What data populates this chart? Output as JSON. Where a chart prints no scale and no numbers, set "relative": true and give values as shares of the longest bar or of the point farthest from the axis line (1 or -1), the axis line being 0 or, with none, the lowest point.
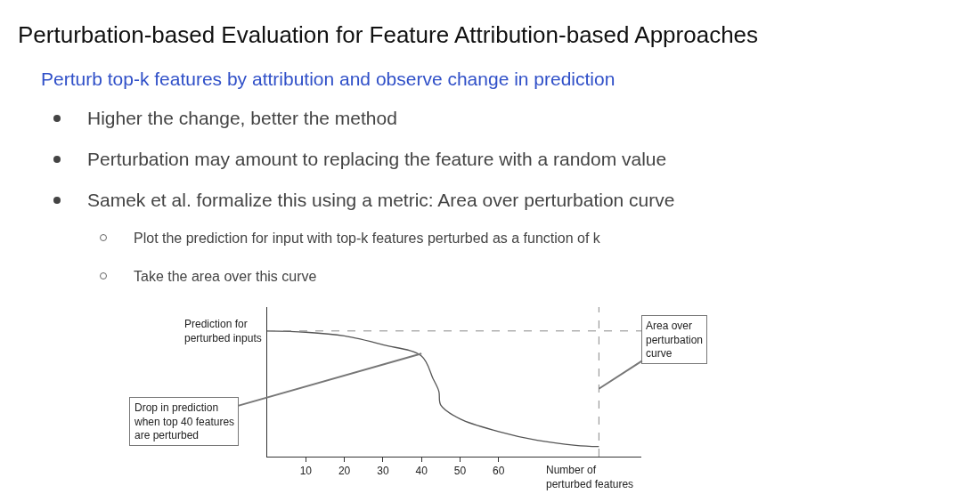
{
  "chart_data": {
    "type": "line",
    "title": "Perturbation-based Evaluation for Feature Attribution-based Approaches",
    "subtitle": "Perturb top-k features by attribution and observe change in prediction",
    "annotations": [
      "Higher the change, better the method",
      "Perturbation may amount to replacing the feature with a random value",
      "Samek et al. formalize this using a metric: Area over perturbation curve",
      "Plot the prediction for input with top-k features perturbed as a function of k",
      "Take the area over this curve",
      {
        "text": "Drop in prediction\nwhen top 40 features\nare perturbed",
        "x": 40,
        "y": 0.82
      },
      {
        "text": "Area over\nperturbation\ncurve",
        "x": 86,
        "y": 0.54
      }
    ],
    "ylabel": "Prediction for\nperturbed inputs",
    "xlabel": "Number of\nperturbed features",
    "relative": true,
    "x": [
      0,
      10,
      20,
      30,
      40,
      43,
      44.5,
      45,
      50,
      60,
      70,
      80,
      86
    ],
    "series": [
      {
        "color": "#555555",
        "values": [
          1,
          0.99,
          0.96,
          0.89,
          0.8,
          0.62,
          0.52,
          0.41,
          0.3,
          0.2,
          0.13,
          0.09,
          0.08
        ]
      }
    ],
    "xlim": [
      0,
      97
    ],
    "xticks": [
      10,
      20,
      30,
      40,
      50,
      60
    ],
    "marker": "none",
    "line_style": "solid",
    "ref_lines": [
      {
        "axis": "y",
        "value": 1,
        "color": "#888888",
        "line_style": "dashed"
      },
      {
        "axis": "x",
        "value": 86,
        "color": "#888888",
        "line_style": "dashed"
      }
    ]
  }
}
